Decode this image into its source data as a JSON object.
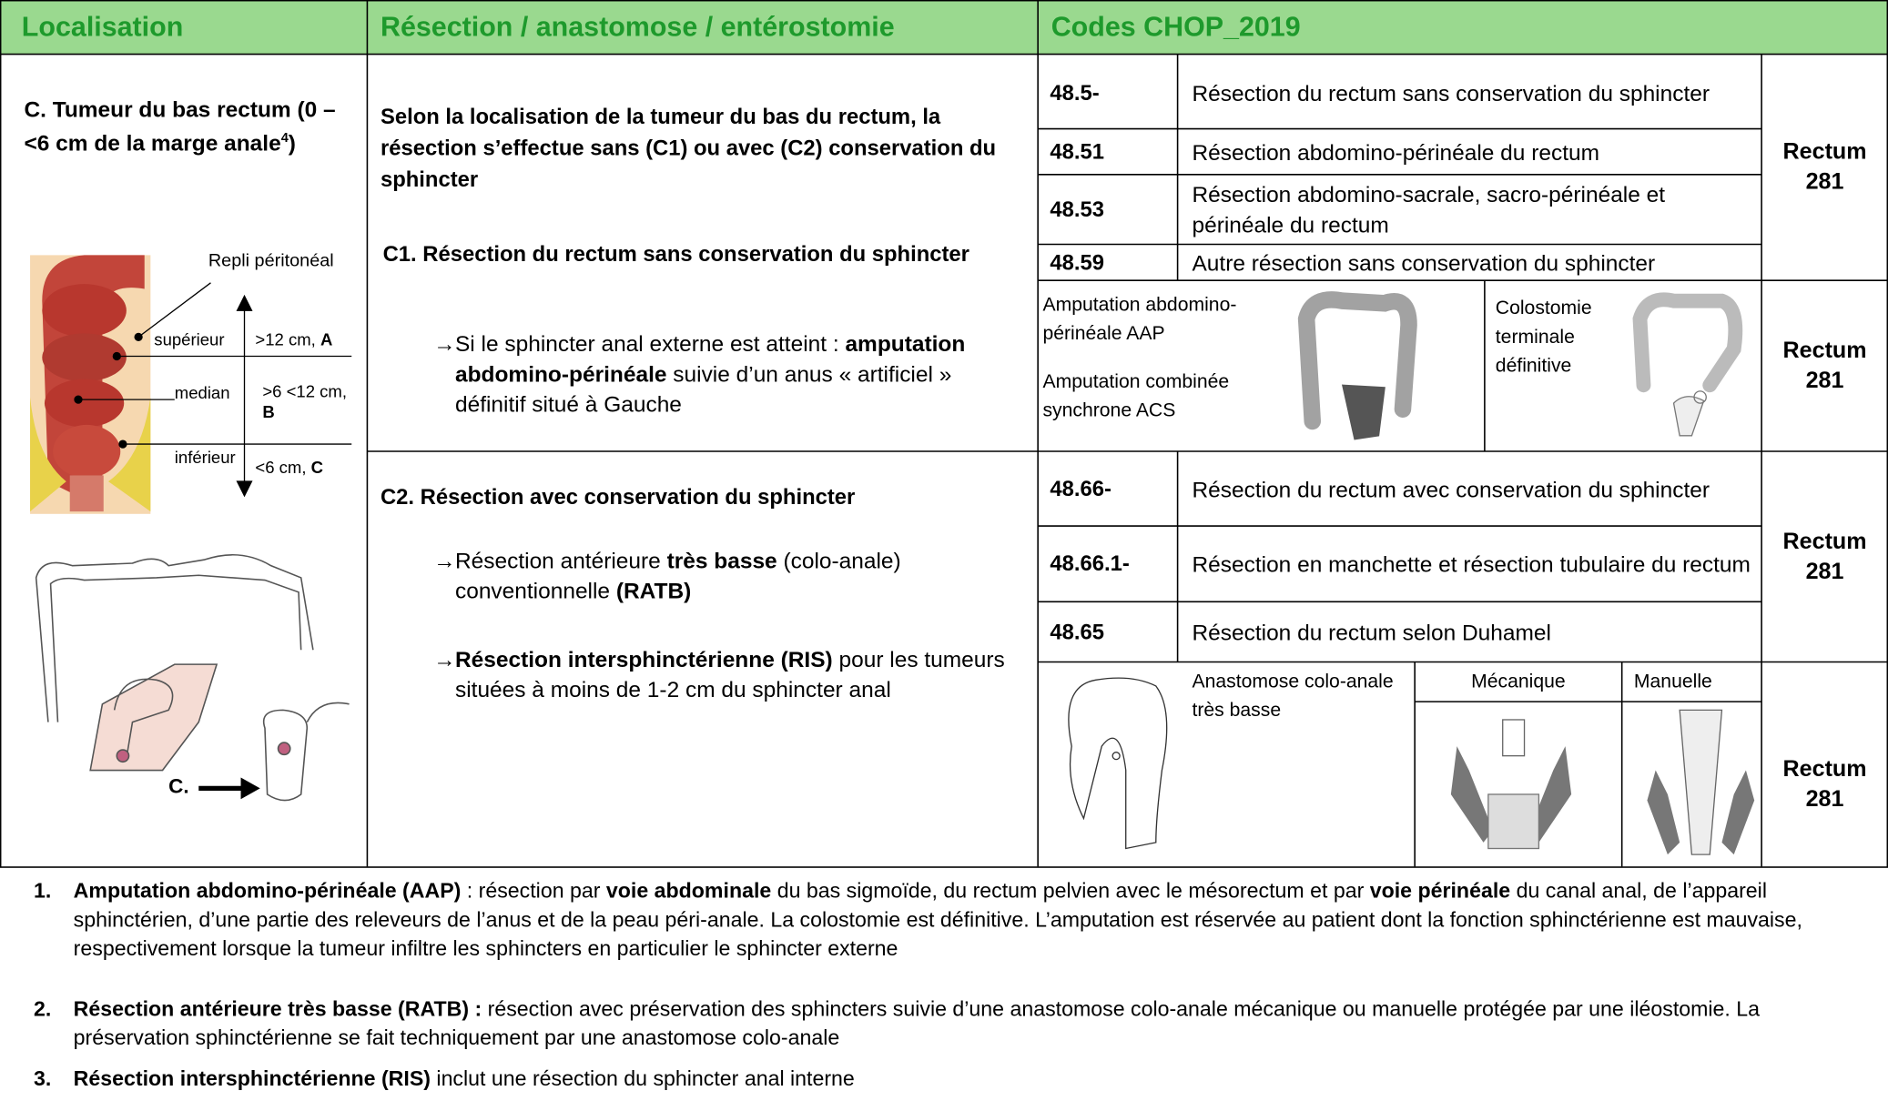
{
  "header": {
    "columns": [
      "Localisation",
      "Résection / anastomose / entérostomie",
      "Codes CHOP_2019"
    ]
  },
  "localisation": {
    "title": [
      {
        "text": "C. Tumeur du bas rectum (0 – <6 cm de la marge anale",
        "bold": true
      },
      {
        "text": "4",
        "bold": true,
        "sup": true
      },
      {
        "text": ")",
        "bold": true
      }
    ],
    "figure_labels": {
      "fold": "Repli péritonéal",
      "upper": "supérieur",
      "upper_range": ">12 cm, ",
      "upper_letter": "A",
      "middle": "median",
      "middle_range": ">6 <12 cm,",
      "middle_letter": "B",
      "lower": "inférieur",
      "lower_range": "<6 cm, ",
      "lower_letter": "C",
      "pointer": "C."
    }
  },
  "resection": {
    "intro": "Selon la localisation de la tumeur du bas du rectum, la résection s’effectue sans (C1) ou avec (C2) conservation du sphincter",
    "c1": {
      "heading": "C1. Résection du rectum sans conservation du sphincter",
      "bullets": [
        {
          "marker": "→",
          "runs": [
            {
              "text": "Si le sphincter anal externe est atteint : ",
              "bold": false
            },
            {
              "text": "amputation abdomino-périnéale",
              "bold": true
            },
            {
              "text": " suivie d’un anus « artificiel » définitif situé à Gauche",
              "bold": false
            }
          ]
        }
      ]
    },
    "c2": {
      "heading": "C2. Résection avec conservation du sphincter",
      "bullets": [
        {
          "marker": "→",
          "runs": [
            {
              "text": "Résection antérieure ",
              "bold": false
            },
            {
              "text": "très basse",
              "bold": true
            },
            {
              "text": " (colo-anale) conventionnelle ",
              "bold": false
            },
            {
              "text": "(RATB)",
              "bold": true
            }
          ]
        },
        {
          "marker": "→",
          "runs": [
            {
              "text": "Résection intersphinctérienne (RIS)",
              "bold": true
            },
            {
              "text": " pour les tumeurs situées à moins de 1-2 cm du sphincter anal",
              "bold": false
            }
          ]
        }
      ]
    }
  },
  "codes": {
    "group1": {
      "rows": [
        [
          "48.5-",
          "Résection du rectum sans conservation du sphincter"
        ],
        [
          "48.51",
          "Résection abdomino-périnéale du rectum"
        ],
        [
          "48.53",
          "Résection abdomino-sacrale, sacro-périnéale et périnéale du rectum"
        ],
        [
          "48.59",
          "Autre résection sans conservation du sphincter"
        ]
      ],
      "category": {
        "name": "Rectum",
        "number": 281
      }
    },
    "figure1": {
      "texts": [
        "Amputation abdomino-périnéale AAP",
        "Amputation combinée synchrone ACS",
        "Colostomie terminale définitive"
      ],
      "category": {
        "name": "Rectum",
        "number": 281
      }
    },
    "group2": {
      "rows": [
        [
          "48.66-",
          "Résection du rectum avec conservation du sphincter"
        ],
        [
          "48.66.1-",
          "Résection en manchette et résection tubulaire du rectum"
        ],
        [
          "48.65",
          "Résection du rectum selon Duhamel"
        ]
      ],
      "category": {
        "name": "Rectum",
        "number": 281
      }
    },
    "figure2": {
      "texts": [
        "Anastomose colo-anale très basse",
        "Mécanique",
        "Manuelle"
      ],
      "category": {
        "name": "Rectum",
        "number": 281
      }
    }
  },
  "footnotes": [
    {
      "number": "1.",
      "runs": [
        {
          "text": "Amputation abdomino-périnéale (AAP)",
          "bold": true
        },
        {
          "text": " : résection par ",
          "bold": false
        },
        {
          "text": "voie abdominale",
          "bold": true
        },
        {
          "text": " du bas sigmoïde, du rectum pelvien avec le mésorectum et par ",
          "bold": false
        },
        {
          "text": "voie périnéale",
          "bold": true
        },
        {
          "text": " du canal anal, de l’appareil sphinctérien, d’une partie des releveurs de l’anus et de la peau péri-anale. La colostomie est définitive. L’amputation est réservée au patient dont la fonction sphinctérienne est mauvaise, respectivement lorsque la tumeur infiltre les sphincters en particulier le sphincter externe",
          "bold": false
        }
      ]
    },
    {
      "number": "2.",
      "runs": [
        {
          "text": "Résection antérieure très basse (RATB) :",
          "bold": true
        },
        {
          "text": " résection avec préservation des sphincters suivie d’une anastomose colo-anale mécanique ou manuelle protégée par une iléostomie. La préservation sphinctérienne se fait techniquement par une anastomose colo-anale",
          "bold": false
        }
      ]
    },
    {
      "number": "3.",
      "runs": [
        {
          "text": "Résection intersphinctérienne (RIS)",
          "bold": true
        },
        {
          "text": " inclut une résection du sphincter anal interne",
          "bold": false
        }
      ]
    }
  ]
}
